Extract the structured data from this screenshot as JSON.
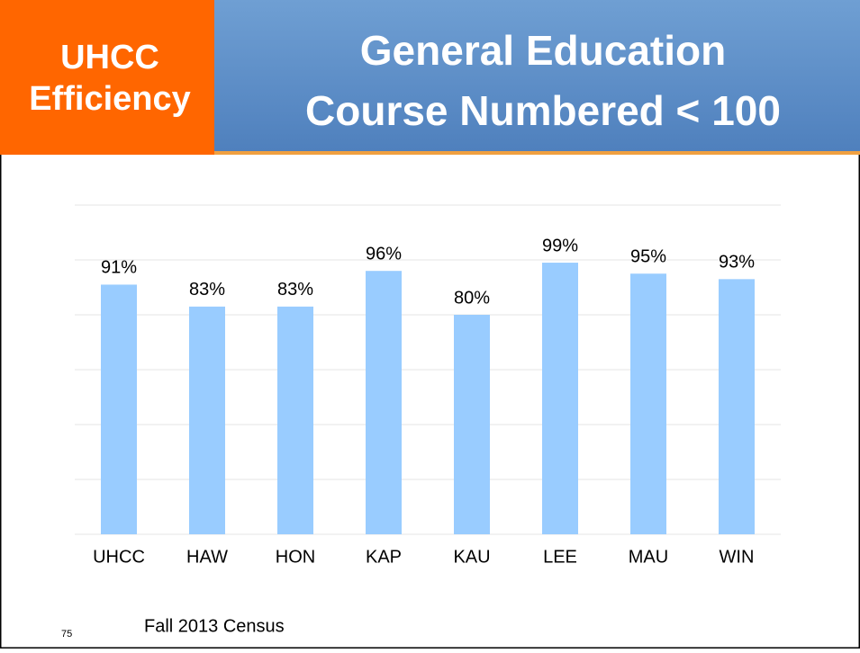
{
  "header": {
    "badge_lines": [
      "UHCC",
      "Efficiency"
    ],
    "title_lines": [
      "General Education",
      "Course Numbered < 100"
    ]
  },
  "chart_data": {
    "type": "bar",
    "categories": [
      "UHCC",
      "HAW",
      "HON",
      "KAP",
      "KAU",
      "LEE",
      "MAU",
      "WIN"
    ],
    "values": [
      91,
      83,
      83,
      96,
      80,
      99,
      95,
      93
    ],
    "value_labels": [
      "91%",
      "83%",
      "83%",
      "96%",
      "80%",
      "99%",
      "95%",
      "93%"
    ],
    "color": "#99ccff",
    "ylim": [
      0,
      120
    ],
    "yticks": [
      0,
      20,
      40,
      60,
      80,
      100,
      120
    ],
    "grid": true
  },
  "footer": {
    "page_number": "75",
    "source": "Fall 2013 Census"
  }
}
